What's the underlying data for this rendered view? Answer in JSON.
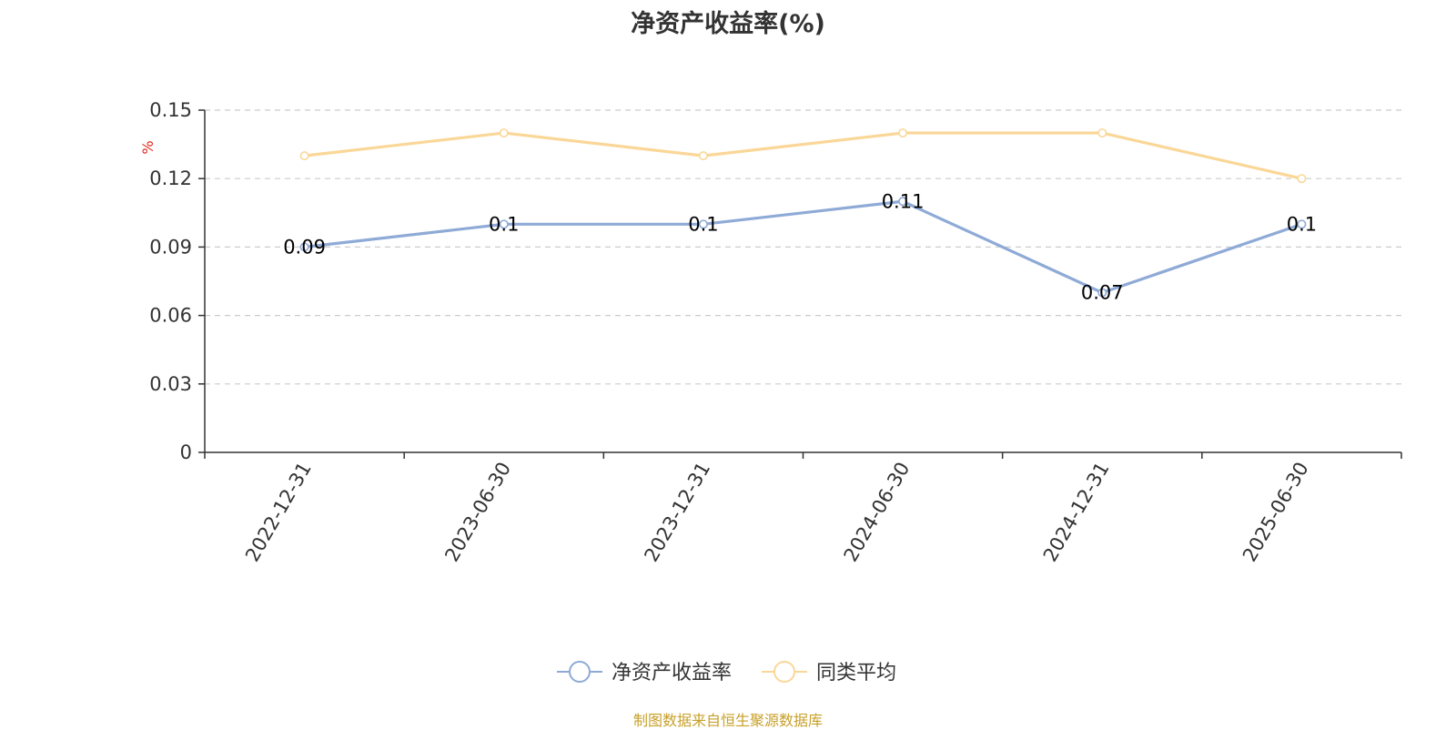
{
  "title": "净资产收益率(%)",
  "source": "制图数据来自恒生聚源数据库",
  "chart_data": {
    "type": "line",
    "title": "净资产收益率(%)",
    "ylabel": "%",
    "xlabel": "",
    "categories": [
      "2022-12-31",
      "2023-06-30",
      "2023-12-31",
      "2024-06-30",
      "2024-12-31",
      "2025-06-30"
    ],
    "ylim": [
      0,
      0.15
    ],
    "yticks": [
      "0",
      "0.03",
      "0.06",
      "0.09",
      "0.12",
      "0.15"
    ],
    "grid": true,
    "legend_position": "bottom",
    "series": [
      {
        "name": "净资产收益率",
        "color": "#8eaad6",
        "values": [
          0.09,
          0.1,
          0.1,
          0.11,
          0.07,
          0.1
        ],
        "labels": [
          "0.09",
          "0.1",
          "0.1",
          "0.11",
          "0.07",
          "0.1"
        ],
        "show_labels": true
      },
      {
        "name": "同类平均",
        "color": "#fad797",
        "values": [
          0.13,
          0.14,
          0.13,
          0.14,
          0.14,
          0.12
        ],
        "show_labels": false
      }
    ]
  }
}
